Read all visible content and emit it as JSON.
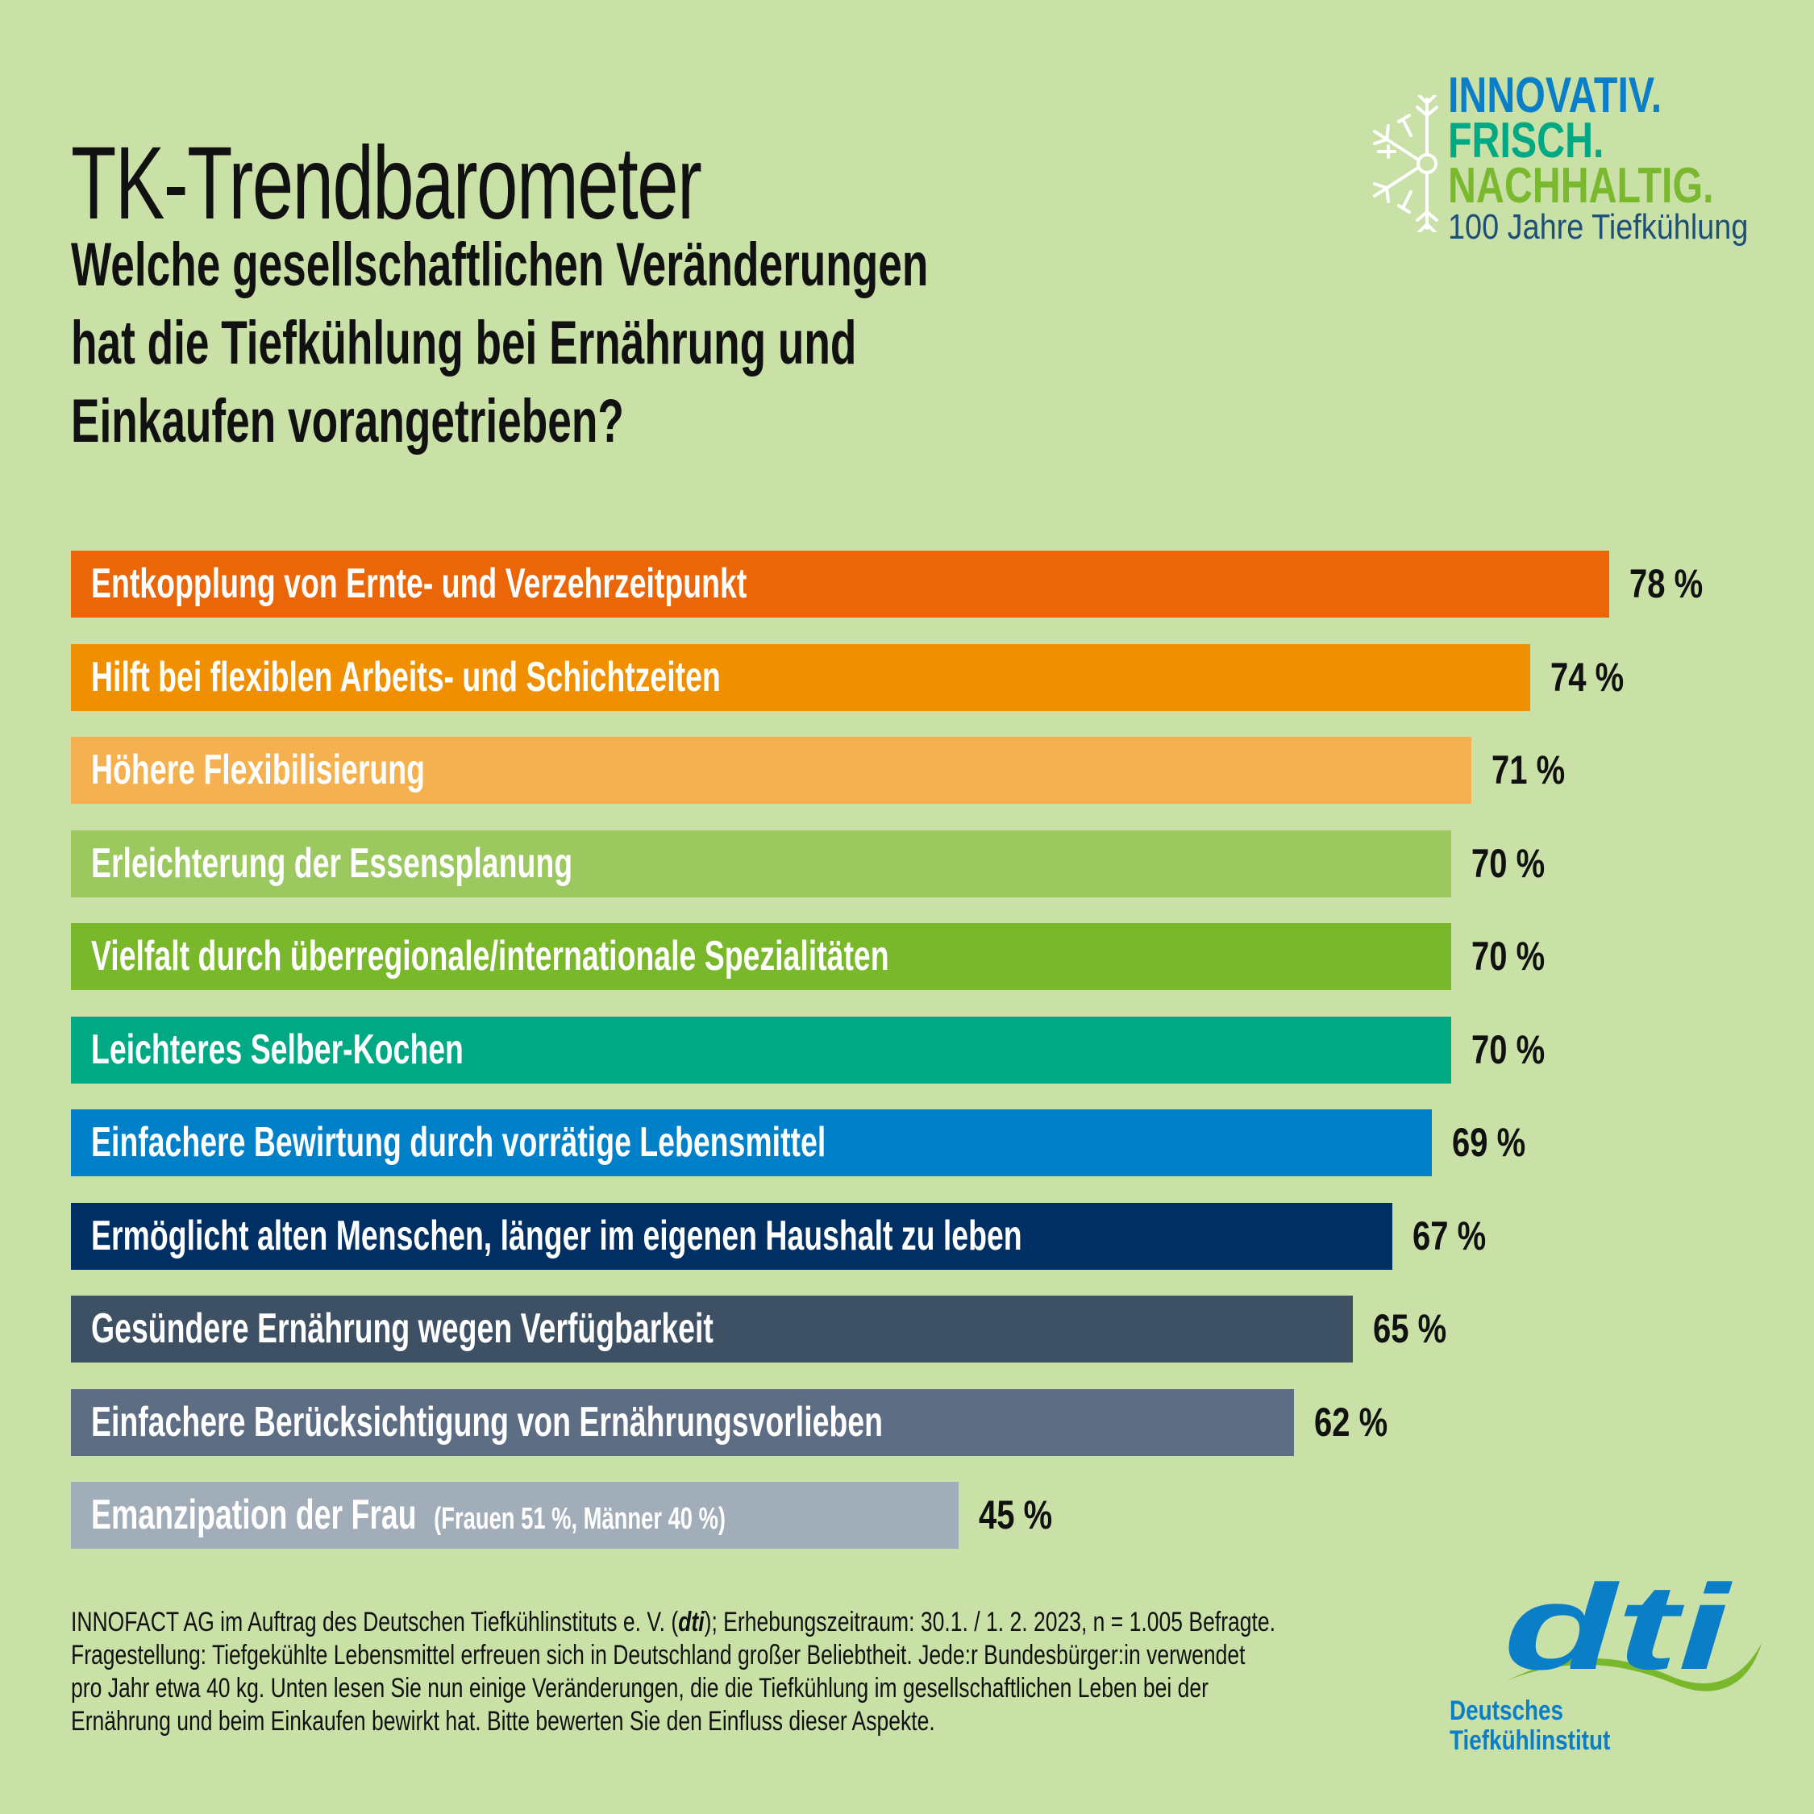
{
  "header": {
    "title": "TK-Trendbarometer",
    "question_lines": [
      "Welche gesellschaftlichen Veränderungen",
      "hat die Tiefkühlung bei Ernährung und",
      "Einkaufen vorangetrieben?"
    ]
  },
  "anniversary_logo": {
    "icon": "snowflake-icon",
    "line1": "INNOVATIV.",
    "line2": "FRISCH.",
    "line3": "NACHHALTIG.",
    "line4": "100 Jahre Tiefkühlung",
    "colors": {
      "line1": "#0a7fc8",
      "line2": "#00a884",
      "line3": "#7ab92f",
      "line4": "#1d4f7a"
    }
  },
  "chart_data": {
    "type": "bar",
    "orientation": "horizontal",
    "title": "Welche gesellschaftlichen Veränderungen hat die Tiefkühlung bei Ernährung und Einkaufen vorangetrieben?",
    "xlabel": "",
    "ylabel": "",
    "unit": "%",
    "xlim": [
      0,
      78
    ],
    "grid": false,
    "categories": [
      "Entkopplung von Ernte- und Verzehrzeitpunkt",
      "Hilft bei flexiblen Arbeits- und Schichtzeiten",
      "Höhere Flexibilisierung",
      "Erleichterung der Essensplanung",
      "Vielfalt durch überregionale/internationale Spezialitäten",
      "Leichteres Selber-Kochen",
      "Einfachere Bewirtung durch vorrätige Lebensmittel",
      "Ermöglicht alten Menschen, länger im eigenen Haushalt zu leben",
      "Gesündere Ernährung wegen Verfügbarkeit",
      "Einfachere Berücksichtigung von Ernährungsvorlieben",
      "Emanzipation der Frau"
    ],
    "values": [
      78,
      74,
      71,
      70,
      70,
      70,
      69,
      67,
      65,
      62,
      45
    ],
    "value_labels": [
      "78 %",
      "74 %",
      "71 %",
      "70 %",
      "70 %",
      "70 %",
      "69 %",
      "67 %",
      "65 %",
      "62 %",
      "45 %"
    ],
    "notes": [
      "",
      "",
      "",
      "",
      "",
      "",
      "",
      "",
      "",
      "",
      "(Frauen 51 %, Männer 40 %)"
    ],
    "colors": [
      "#eb6608",
      "#f09000",
      "#f5b04f",
      "#9bc85f",
      "#78b82a",
      "#00a884",
      "#0080c9",
      "#003063",
      "#3e5063",
      "#5d6e84",
      "#a2adba"
    ]
  },
  "footnote": {
    "lines": [
      [
        "INNOFACT AG im Auftrag des Deutschen Tiefkühlinstituts e. V. (",
        "dti",
        "); Erhebungszeitraum: 30.1. / 1. 2. 2023, n = 1.005 Befragte."
      ],
      "Fragestellung: Tiefgekühlte Lebensmittel erfreuen sich in Deutschland großer Beliebtheit. Jede:r Bundesbürger:in verwendet",
      "pro Jahr etwa 40 kg. Unten lesen Sie nun einige Veränderungen, die die Tiefkühlung im gesellschaftlichen Leben bei der",
      "Ernährung und beim Einkaufen bewirkt hat. Bitte bewerten Sie den Einfluss dieser Aspekte."
    ]
  },
  "dti_logo": {
    "wordmark": "dti",
    "name_line1": "Deutsches",
    "name_line2": "Tiefkühlinstitut",
    "colors": {
      "wordmark": "#0a7fc8",
      "wave": "#78b82a"
    }
  }
}
